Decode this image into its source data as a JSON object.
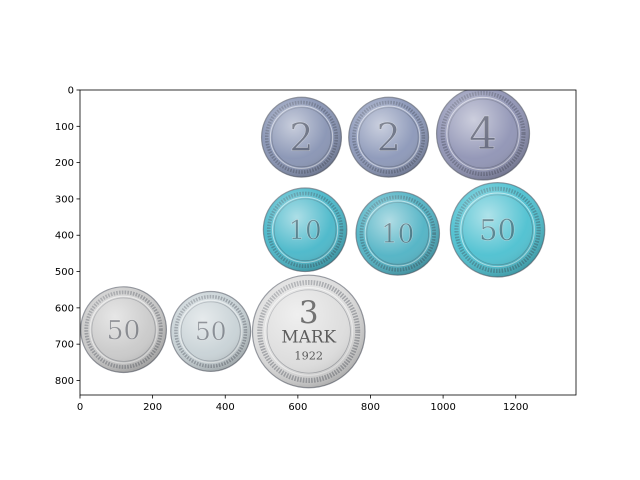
{
  "figure": {
    "image_description_hidden": "",
    "x_axis": {
      "range": [
        0,
        1366
      ],
      "ticks": [
        0,
        200,
        400,
        600,
        800,
        1000,
        1200
      ],
      "tick_labels": [
        "0",
        "200",
        "400",
        "600",
        "800",
        "1000",
        "1200"
      ]
    },
    "y_axis": {
      "range": [
        840,
        0
      ],
      "inverted": true,
      "ticks": [
        0,
        100,
        200,
        300,
        400,
        500,
        600,
        700,
        800
      ],
      "tick_labels": [
        "0",
        "100",
        "200",
        "300",
        "400",
        "500",
        "600",
        "700",
        "800"
      ]
    },
    "coins": [
      {
        "id": "coin-2-a",
        "cx": 610,
        "cy": 130,
        "r": 110,
        "tint": "#8793b3",
        "label": "2"
      },
      {
        "id": "coin-2-b",
        "cx": 850,
        "cy": 130,
        "r": 110,
        "tint": "#8b97b8",
        "label": "2"
      },
      {
        "id": "coin-4",
        "cx": 1110,
        "cy": 120,
        "r": 128,
        "tint": "#8f93b4",
        "label": "4"
      },
      {
        "id": "coin-10-a",
        "cx": 620,
        "cy": 385,
        "r": 115,
        "tint": "#48b7c9",
        "label": "10"
      },
      {
        "id": "coin-10-b",
        "cx": 875,
        "cy": 395,
        "r": 115,
        "tint": "#4fb2c4",
        "label": "10"
      },
      {
        "id": "coin-50-teal",
        "cx": 1150,
        "cy": 385,
        "r": 130,
        "tint": "#4cc0d0",
        "label": "50"
      },
      {
        "id": "coin-50-a",
        "cx": 120,
        "cy": 660,
        "r": 118,
        "tint": "#c9c9c9",
        "label": "50"
      },
      {
        "id": "coin-50-b",
        "cx": 360,
        "cy": 665,
        "r": 110,
        "tint": "#c8d2d6",
        "label": "50"
      },
      {
        "id": "coin-3-mark",
        "cx": 630,
        "cy": 665,
        "r": 155,
        "tint": "#dcdcdc",
        "label": "3",
        "sub": "MARK",
        "year": "1922"
      }
    ]
  }
}
